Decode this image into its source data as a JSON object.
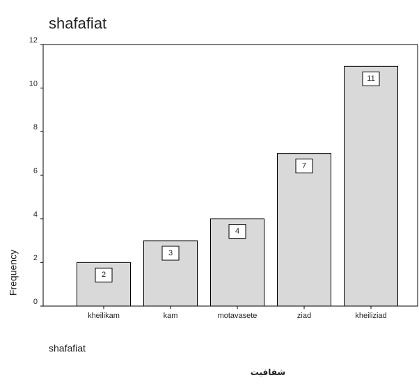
{
  "chart_data": {
    "type": "bar",
    "title": "shafafiat",
    "xlabel": "shafafiat",
    "ylabel": "Frequency",
    "caption": "شفافيت",
    "categories": [
      "kheilikam",
      "kam",
      "motavasete",
      "ziad",
      "kheiliziad"
    ],
    "values": [
      2,
      3,
      4,
      7,
      11
    ],
    "color": "#d9d9d9",
    "ylim": [
      0,
      12
    ],
    "yticks": [
      0,
      2,
      4,
      6,
      8,
      10,
      12
    ],
    "grid": false
  }
}
